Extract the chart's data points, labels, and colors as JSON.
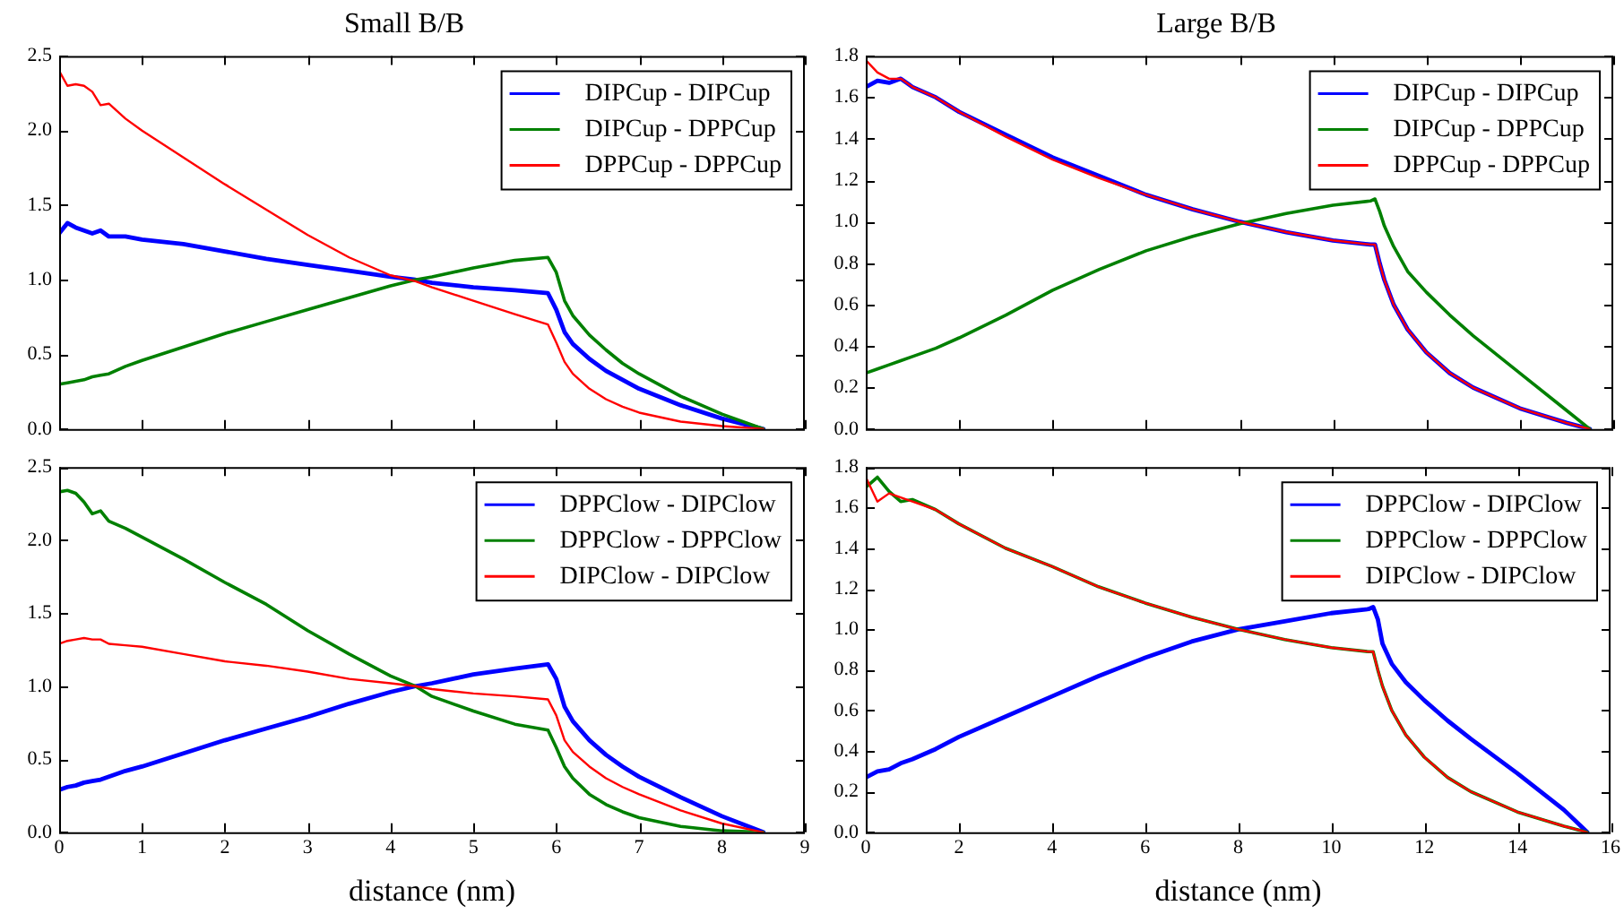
{
  "chart_data": [
    {
      "type": "line",
      "title": "Small B/B",
      "tick_labels": "y",
      "legend": "top right",
      "x": [
        0,
        0.1,
        0.2,
        0.3,
        0.4,
        0.5,
        0.6,
        0.8,
        1,
        1.5,
        2,
        2.5,
        3,
        3.5,
        4,
        4.3,
        4.5,
        5,
        5.5,
        5.9,
        6.0,
        6.1,
        6.2,
        6.4,
        6.6,
        6.8,
        7,
        7.5,
        8,
        8.5
      ],
      "xlim": [
        0,
        9
      ],
      "xticks": [
        0,
        1,
        2,
        3,
        4,
        5,
        6,
        7,
        8,
        9
      ],
      "ylim": [
        0,
        2.5
      ],
      "yticks": [
        {
          "value": 0,
          "label": "0.0"
        },
        {
          "value": 0.5,
          "label": "0.5"
        },
        {
          "value": 1,
          "label": "1.0"
        },
        {
          "value": 1.5,
          "label": "1.5"
        },
        {
          "value": 2,
          "label": "2.0"
        },
        {
          "value": 2.5,
          "label": "2.5"
        }
      ],
      "series": [
        {
          "name": "DIPCup - DIPCup",
          "color": "#0000ff",
          "values": [
            1.31,
            1.38,
            1.35,
            1.33,
            1.31,
            1.33,
            1.29,
            1.29,
            1.27,
            1.24,
            1.19,
            1.14,
            1.1,
            1.06,
            1.02,
            1.0,
            0.98,
            0.95,
            0.93,
            0.91,
            0.8,
            0.65,
            0.57,
            0.47,
            0.39,
            0.33,
            0.27,
            0.16,
            0.07,
            0.0
          ]
        },
        {
          "name": "DIPCup - DPPCup",
          "color": "#008000",
          "values": [
            0.3,
            0.31,
            0.32,
            0.33,
            0.35,
            0.36,
            0.37,
            0.42,
            0.46,
            0.55,
            0.64,
            0.72,
            0.8,
            0.88,
            0.96,
            1.0,
            1.02,
            1.08,
            1.13,
            1.15,
            1.05,
            0.86,
            0.76,
            0.63,
            0.53,
            0.44,
            0.37,
            0.22,
            0.1,
            0.0
          ]
        },
        {
          "name": "DPPCup - DPPCup",
          "color": "#ff0000",
          "values": [
            2.4,
            2.3,
            2.31,
            2.3,
            2.26,
            2.17,
            2.18,
            2.08,
            2.0,
            1.82,
            1.64,
            1.47,
            1.3,
            1.15,
            1.03,
            0.99,
            0.95,
            0.86,
            0.77,
            0.7,
            0.58,
            0.45,
            0.37,
            0.27,
            0.2,
            0.15,
            0.11,
            0.05,
            0.02,
            0.0
          ]
        }
      ]
    },
    {
      "type": "line",
      "title": "Large B/B",
      "tick_labels": "y",
      "legend": "top right",
      "x": [
        0,
        0.25,
        0.5,
        0.75,
        1,
        1.5,
        2,
        3,
        4,
        5,
        6,
        7,
        8,
        9,
        10,
        10.8,
        10.9,
        11,
        11.1,
        11.3,
        11.6,
        12,
        12.5,
        13,
        14,
        15,
        15.5
      ],
      "xlim": [
        0,
        16
      ],
      "xticks": [
        0,
        2,
        4,
        6,
        8,
        10,
        12,
        14,
        16
      ],
      "ylim": [
        0,
        1.8
      ],
      "yticks": [
        {
          "value": 0,
          "label": "0.0"
        },
        {
          "value": 0.2,
          "label": "0.2"
        },
        {
          "value": 0.4,
          "label": "0.4"
        },
        {
          "value": 0.6,
          "label": "0.6"
        },
        {
          "value": 0.8,
          "label": "0.8"
        },
        {
          "value": 1,
          "label": "1.0"
        },
        {
          "value": 1.2,
          "label": "1.2"
        },
        {
          "value": 1.4,
          "label": "1.4"
        },
        {
          "value": 1.6,
          "label": "1.6"
        },
        {
          "value": 1.8,
          "label": "1.8"
        }
      ],
      "series": [
        {
          "name": "DIPCup - DIPCup",
          "color": "#0000ff",
          "values": [
            1.65,
            1.68,
            1.67,
            1.69,
            1.65,
            1.6,
            1.53,
            1.42,
            1.31,
            1.22,
            1.13,
            1.06,
            1.0,
            0.95,
            0.91,
            0.89,
            0.89,
            0.8,
            0.72,
            0.6,
            0.48,
            0.37,
            0.27,
            0.2,
            0.1,
            0.03,
            0.0
          ]
        },
        {
          "name": "DIPCup - DPPCup",
          "color": "#008000",
          "values": [
            0.27,
            0.29,
            0.31,
            0.33,
            0.35,
            0.39,
            0.44,
            0.55,
            0.67,
            0.77,
            0.86,
            0.93,
            0.99,
            1.04,
            1.08,
            1.1,
            1.11,
            1.05,
            0.98,
            0.88,
            0.76,
            0.66,
            0.55,
            0.45,
            0.27,
            0.09,
            0.0
          ]
        },
        {
          "name": "DPPCup - DPPCup",
          "color": "#ff0000",
          "values": [
            1.78,
            1.72,
            1.69,
            1.69,
            1.65,
            1.6,
            1.53,
            1.41,
            1.3,
            1.21,
            1.13,
            1.06,
            1.0,
            0.95,
            0.91,
            0.89,
            0.89,
            0.8,
            0.72,
            0.6,
            0.48,
            0.37,
            0.27,
            0.2,
            0.1,
            0.03,
            0.0
          ]
        }
      ]
    },
    {
      "type": "line",
      "xlabel": "distance (nm)",
      "legend": "top right",
      "x": [
        0,
        0.1,
        0.2,
        0.3,
        0.4,
        0.5,
        0.6,
        0.8,
        1,
        1.5,
        2,
        2.5,
        3,
        3.5,
        4,
        4.3,
        4.5,
        5,
        5.5,
        5.9,
        6.0,
        6.1,
        6.2,
        6.4,
        6.6,
        6.8,
        7,
        7.5,
        8,
        8.5
      ],
      "xlim": [
        0,
        9
      ],
      "xticks": [
        0,
        1,
        2,
        3,
        4,
        5,
        6,
        7,
        8,
        9
      ],
      "ylim": [
        0,
        2.5
      ],
      "yticks": [
        {
          "value": 0,
          "label": "0.0"
        },
        {
          "value": 0.5,
          "label": "0.5"
        },
        {
          "value": 1,
          "label": "1.0"
        },
        {
          "value": 1.5,
          "label": "1.5"
        },
        {
          "value": 2,
          "label": "2.0"
        },
        {
          "value": 2.5,
          "label": "2.5"
        }
      ],
      "series": [
        {
          "name": "DPPClow - DIPClow",
          "color": "#0000ff",
          "values": [
            0.29,
            0.31,
            0.32,
            0.34,
            0.35,
            0.36,
            0.38,
            0.42,
            0.45,
            0.54,
            0.63,
            0.71,
            0.79,
            0.88,
            0.96,
            1.0,
            1.02,
            1.08,
            1.12,
            1.15,
            1.05,
            0.86,
            0.76,
            0.63,
            0.53,
            0.45,
            0.38,
            0.24,
            0.11,
            0.0
          ]
        },
        {
          "name": "DPPClow - DPPClow",
          "color": "#008000",
          "values": [
            2.33,
            2.34,
            2.32,
            2.26,
            2.18,
            2.2,
            2.13,
            2.08,
            2.02,
            1.87,
            1.71,
            1.56,
            1.38,
            1.22,
            1.07,
            1.0,
            0.93,
            0.83,
            0.74,
            0.7,
            0.58,
            0.45,
            0.37,
            0.26,
            0.19,
            0.14,
            0.1,
            0.04,
            0.01,
            0.0
          ]
        },
        {
          "name": "DIPClow - DIPClow",
          "color": "#ff0000",
          "values": [
            1.29,
            1.31,
            1.32,
            1.33,
            1.32,
            1.32,
            1.29,
            1.28,
            1.27,
            1.22,
            1.17,
            1.14,
            1.1,
            1.05,
            1.02,
            1.0,
            0.98,
            0.95,
            0.93,
            0.91,
            0.8,
            0.63,
            0.55,
            0.45,
            0.37,
            0.31,
            0.26,
            0.15,
            0.06,
            0.0
          ]
        }
      ]
    },
    {
      "type": "line",
      "xlabel": "distance (nm)",
      "legend": "top right",
      "x": [
        0,
        0.25,
        0.5,
        0.75,
        1,
        1.5,
        2,
        3,
        4,
        5,
        6,
        7,
        8,
        9,
        10,
        10.8,
        10.9,
        11,
        11.1,
        11.3,
        11.6,
        12,
        12.5,
        13,
        14,
        15,
        15.5
      ],
      "xlim": [
        0,
        16
      ],
      "xticks": [
        0,
        2,
        4,
        6,
        8,
        10,
        12,
        14,
        16
      ],
      "ylim": [
        0,
        1.8
      ],
      "yticks": [
        {
          "value": 0,
          "label": "0.0"
        },
        {
          "value": 0.2,
          "label": "0.2"
        },
        {
          "value": 0.4,
          "label": "0.4"
        },
        {
          "value": 0.6,
          "label": "0.6"
        },
        {
          "value": 0.8,
          "label": "0.8"
        },
        {
          "value": 1,
          "label": "1.0"
        },
        {
          "value": 1.2,
          "label": "1.2"
        },
        {
          "value": 1.4,
          "label": "1.4"
        },
        {
          "value": 1.6,
          "label": "1.6"
        },
        {
          "value": 1.8,
          "label": "1.8"
        }
      ],
      "series": [
        {
          "name": "DPPClow - DIPClow",
          "color": "#0000ff",
          "values": [
            0.27,
            0.3,
            0.31,
            0.34,
            0.36,
            0.41,
            0.47,
            0.57,
            0.67,
            0.77,
            0.86,
            0.94,
            1.0,
            1.04,
            1.08,
            1.1,
            1.11,
            1.05,
            0.93,
            0.83,
            0.74,
            0.65,
            0.55,
            0.46,
            0.29,
            0.11,
            0.0
          ]
        },
        {
          "name": "DPPClow - DPPClow",
          "color": "#008000",
          "values": [
            1.7,
            1.75,
            1.68,
            1.63,
            1.64,
            1.59,
            1.52,
            1.4,
            1.31,
            1.21,
            1.13,
            1.06,
            1.0,
            0.95,
            0.91,
            0.89,
            0.89,
            0.8,
            0.72,
            0.6,
            0.48,
            0.37,
            0.27,
            0.2,
            0.1,
            0.03,
            0.0
          ]
        },
        {
          "name": "DIPClow - DIPClow",
          "color": "#ff0000",
          "values": [
            1.75,
            1.63,
            1.67,
            1.65,
            1.63,
            1.59,
            1.52,
            1.4,
            1.31,
            1.21,
            1.13,
            1.06,
            1.0,
            0.95,
            0.91,
            0.89,
            0.89,
            0.8,
            0.72,
            0.6,
            0.48,
            0.37,
            0.27,
            0.2,
            0.1,
            0.03,
            0.0
          ]
        }
      ]
    }
  ]
}
